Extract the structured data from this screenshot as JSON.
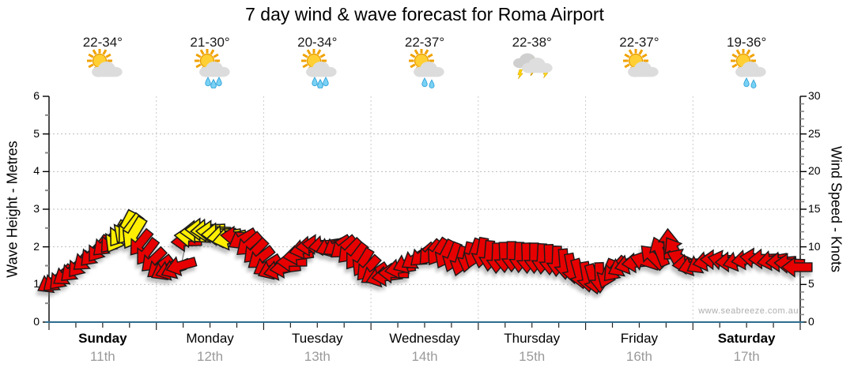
{
  "chart_data": {
    "type": "wind-forecast-arrows",
    "title": "7 day wind & wave forecast for Roma Airport",
    "watermark": "www.seabreeze.com.au",
    "left_axis": {
      "label": "Wave Height - Metres",
      "min": 0,
      "max": 6,
      "major_ticks": [
        0,
        1,
        2,
        3,
        4,
        5,
        6
      ],
      "minor_step": 0.5
    },
    "right_axis": {
      "label": "Wind Speed - Knots",
      "min": 0,
      "max": 30,
      "major_ticks": [
        0,
        5,
        10,
        15,
        20,
        25,
        30
      ],
      "minor_step": 1
    },
    "grid": {
      "horizontal_at_metres": [
        1,
        2,
        3,
        4,
        5
      ],
      "vertical_at_day_boundaries": true,
      "x_minor_ticks_per_day": 4
    },
    "days": [
      {
        "name": "Sunday",
        "date": "11th",
        "temp": "22-34°",
        "icon": "partly-cloudy",
        "bold": true
      },
      {
        "name": "Monday",
        "date": "12th",
        "temp": "21-30°",
        "icon": "rain",
        "bold": false
      },
      {
        "name": "Tuesday",
        "date": "13th",
        "temp": "20-34°",
        "icon": "rain",
        "bold": false
      },
      {
        "name": "Wednesday",
        "date": "14th",
        "temp": "22-37°",
        "icon": "showers",
        "bold": false
      },
      {
        "name": "Thursday",
        "date": "15th",
        "temp": "22-38°",
        "icon": "storm",
        "bold": false
      },
      {
        "name": "Friday",
        "date": "16th",
        "temp": "22-37°",
        "icon": "partly-cloudy",
        "bold": false
      },
      {
        "name": "Saturday",
        "date": "17th",
        "temp": "19-36°",
        "icon": "showers",
        "bold": true
      }
    ],
    "wind_arrows": {
      "columns": [
        "day_offset",
        "knots",
        "dir_deg_cw_from_east",
        "yellow"
      ],
      "rows": [
        [
          0.02,
          5.2,
          150,
          0
        ],
        [
          0.06,
          5.5,
          140,
          0
        ],
        [
          0.11,
          5.9,
          133,
          0
        ],
        [
          0.16,
          6.3,
          145,
          0
        ],
        [
          0.22,
          6.9,
          137,
          0
        ],
        [
          0.28,
          7.6,
          130,
          0
        ],
        [
          0.34,
          8.3,
          140,
          0
        ],
        [
          0.4,
          9.0,
          134,
          0
        ],
        [
          0.46,
          9.7,
          127,
          0
        ],
        [
          0.52,
          10.3,
          137,
          0
        ],
        [
          0.58,
          10.8,
          130,
          0
        ],
        [
          0.63,
          11.3,
          120,
          1
        ],
        [
          0.67,
          12.0,
          126,
          1
        ],
        [
          0.71,
          12.6,
          117,
          1
        ],
        [
          0.75,
          12.3,
          127,
          1
        ],
        [
          0.79,
          11.8,
          121,
          1
        ],
        [
          0.85,
          10.5,
          129,
          0
        ],
        [
          0.91,
          9.3,
          127,
          0
        ],
        [
          0.97,
          8.2,
          136,
          0
        ],
        [
          1.03,
          7.3,
          141,
          0
        ],
        [
          1.08,
          6.9,
          151,
          0
        ],
        [
          1.13,
          6.9,
          161,
          0
        ],
        [
          1.18,
          7.1,
          156,
          0
        ],
        [
          1.23,
          7.5,
          164,
          0
        ],
        [
          1.28,
          10.7,
          178,
          0
        ],
        [
          1.33,
          11.4,
          183,
          1
        ],
        [
          1.38,
          12.0,
          178,
          1
        ],
        [
          1.43,
          12.3,
          180,
          1
        ],
        [
          1.48,
          12.2,
          176,
          1
        ],
        [
          1.53,
          12.0,
          182,
          1
        ],
        [
          1.58,
          11.7,
          178,
          1
        ],
        [
          1.63,
          11.4,
          172,
          1
        ],
        [
          1.68,
          11.1,
          168,
          1
        ],
        [
          1.74,
          11.4,
          184,
          0
        ],
        [
          1.8,
          11.0,
          150,
          0
        ],
        [
          1.86,
          10.3,
          139,
          0
        ],
        [
          1.92,
          9.4,
          134,
          0
        ],
        [
          1.97,
          8.5,
          142,
          0
        ],
        [
          2.03,
          7.5,
          148,
          0
        ],
        [
          2.08,
          7.0,
          156,
          0
        ],
        [
          2.14,
          6.9,
          166,
          0
        ],
        [
          2.2,
          7.2,
          173,
          0
        ],
        [
          2.26,
          8.0,
          179,
          0
        ],
        [
          2.32,
          8.9,
          172,
          0
        ],
        [
          2.38,
          9.7,
          167,
          0
        ],
        [
          2.44,
          10.1,
          175,
          0
        ],
        [
          2.5,
          10.3,
          183,
          0
        ],
        [
          2.56,
          10.2,
          172,
          0
        ],
        [
          2.62,
          10.0,
          159,
          0
        ],
        [
          2.68,
          10.1,
          149,
          0
        ],
        [
          2.74,
          9.9,
          141,
          0
        ],
        [
          2.8,
          9.4,
          134,
          0
        ],
        [
          2.86,
          8.7,
          127,
          0
        ],
        [
          2.92,
          7.9,
          121,
          0
        ],
        [
          2.97,
          7.1,
          132,
          0
        ],
        [
          3.03,
          6.4,
          146,
          0
        ],
        [
          3.09,
          6.0,
          161,
          0
        ],
        [
          3.15,
          6.1,
          173,
          0
        ],
        [
          3.21,
          6.5,
          181,
          0
        ],
        [
          3.27,
          7.1,
          170,
          0
        ],
        [
          3.34,
          7.8,
          157,
          0
        ],
        [
          3.41,
          8.4,
          147,
          0
        ],
        [
          3.48,
          8.9,
          139,
          0
        ],
        [
          3.55,
          9.2,
          131,
          0
        ],
        [
          3.62,
          9.3,
          124,
          0
        ],
        [
          3.69,
          9.0,
          117,
          0
        ],
        [
          3.76,
          8.6,
          111,
          0
        ],
        [
          3.83,
          8.1,
          107,
          0
        ],
        [
          3.9,
          8.6,
          103,
          0
        ],
        [
          3.96,
          9.1,
          110,
          0
        ],
        [
          4.03,
          9.2,
          100,
          0
        ],
        [
          4.1,
          8.8,
          95,
          0
        ],
        [
          4.17,
          8.5,
          92,
          0
        ],
        [
          4.24,
          8.6,
          88,
          0
        ],
        [
          4.31,
          8.7,
          90,
          0
        ],
        [
          4.38,
          8.6,
          92,
          0
        ],
        [
          4.45,
          8.5,
          88,
          0
        ],
        [
          4.52,
          8.5,
          90,
          0
        ],
        [
          4.59,
          8.4,
          93,
          0
        ],
        [
          4.66,
          8.3,
          88,
          0
        ],
        [
          4.73,
          8.1,
          92,
          0
        ],
        [
          4.8,
          7.7,
          85,
          0
        ],
        [
          4.87,
          7.1,
          79,
          0
        ],
        [
          4.94,
          6.4,
          74,
          0
        ],
        [
          5.01,
          6.0,
          80,
          0
        ],
        [
          5.07,
          5.7,
          74,
          0
        ],
        [
          5.13,
          5.9,
          88,
          0
        ],
        [
          5.2,
          6.4,
          112,
          0
        ],
        [
          5.27,
          7.0,
          132,
          0
        ],
        [
          5.34,
          7.4,
          152,
          0
        ],
        [
          5.41,
          7.7,
          164,
          0
        ],
        [
          5.48,
          7.9,
          174,
          0
        ],
        [
          5.55,
          8.1,
          198,
          0
        ],
        [
          5.62,
          8.7,
          225,
          0
        ],
        [
          5.69,
          9.4,
          248,
          0
        ],
        [
          5.77,
          10.4,
          268,
          0
        ],
        [
          5.83,
          9.5,
          238,
          0
        ],
        [
          5.89,
          8.4,
          205,
          0
        ],
        [
          5.95,
          7.7,
          175,
          0
        ],
        [
          6.0,
          7.5,
          162,
          0
        ],
        [
          6.07,
          7.8,
          150,
          0
        ],
        [
          6.14,
          8.1,
          168,
          0
        ],
        [
          6.21,
          8.3,
          181,
          0
        ],
        [
          6.28,
          8.2,
          192,
          0
        ],
        [
          6.35,
          8.0,
          178,
          0
        ],
        [
          6.42,
          8.1,
          165,
          0
        ],
        [
          6.5,
          8.3,
          172,
          0
        ],
        [
          6.58,
          8.5,
          186,
          0
        ],
        [
          6.66,
          8.4,
          178,
          0
        ],
        [
          6.74,
          8.2,
          170,
          0
        ],
        [
          6.82,
          8.0,
          176,
          0
        ],
        [
          6.9,
          7.8,
          182,
          0
        ],
        [
          6.97,
          7.3,
          180,
          0
        ]
      ]
    },
    "colors": {
      "arrow_red": "#e60000",
      "arrow_yellow": "#ffee00",
      "arrow_outline": "#1a1a1a",
      "bottom_axis": "#2e6d90",
      "grid": "#bdbdbd",
      "day_grid": "#cccccc",
      "date_text": "#9a9a9a",
      "watermark_text": "#aeaeae",
      "wind_line": "#6b6b6b"
    }
  }
}
